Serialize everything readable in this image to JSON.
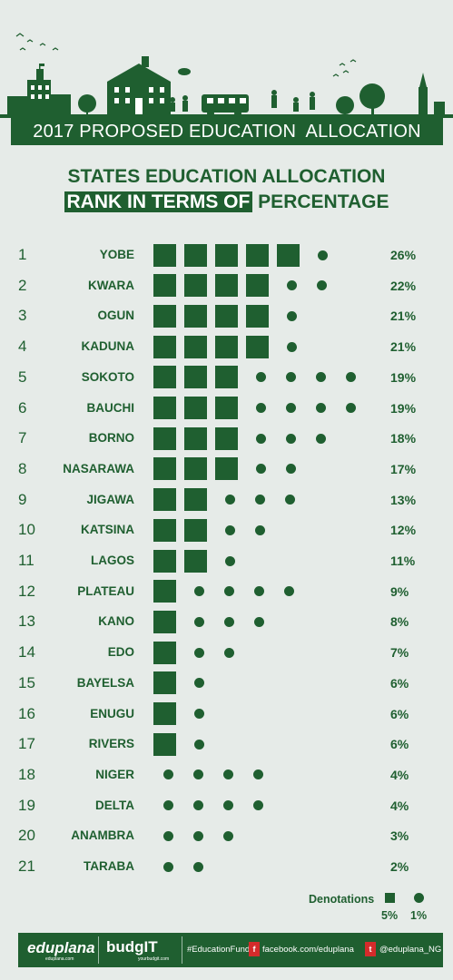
{
  "title": "2017 PROPOSED EDUCATION  ALLOCATION",
  "heading_line1": "STATES EDUCATION ALLOCATION",
  "heading_line2_highlight": "RANK IN TERMS OF",
  "heading_line2_rest": " PERCENTAGE",
  "colors": {
    "primary": "#1f5f30",
    "background": "#e6ebe8",
    "social": "#d42b2b"
  },
  "rows": [
    {
      "rank": "1",
      "state": "YOBE",
      "squares": 5,
      "dots": 1,
      "pct": "26%"
    },
    {
      "rank": "2",
      "state": "KWARA",
      "squares": 4,
      "dots": 2,
      "pct": "22%"
    },
    {
      "rank": "3",
      "state": "OGUN",
      "squares": 4,
      "dots": 1,
      "pct": "21%"
    },
    {
      "rank": "4",
      "state": "KADUNA",
      "squares": 4,
      "dots": 1,
      "pct": "21%"
    },
    {
      "rank": "5",
      "state": "SOKOTO",
      "squares": 3,
      "dots": 4,
      "pct": "19%"
    },
    {
      "rank": "6",
      "state": "BAUCHI",
      "squares": 3,
      "dots": 4,
      "pct": "19%"
    },
    {
      "rank": "7",
      "state": "BORNO",
      "squares": 3,
      "dots": 3,
      "pct": "18%"
    },
    {
      "rank": "8",
      "state": "NASARAWA",
      "squares": 3,
      "dots": 2,
      "pct": "17%"
    },
    {
      "rank": "9",
      "state": "JIGAWA",
      "squares": 2,
      "dots": 3,
      "pct": "13%"
    },
    {
      "rank": "10",
      "state": "KATSINA",
      "squares": 2,
      "dots": 2,
      "pct": "12%"
    },
    {
      "rank": "11",
      "state": "LAGOS",
      "squares": 2,
      "dots": 1,
      "pct": "11%"
    },
    {
      "rank": "12",
      "state": "PLATEAU",
      "squares": 1,
      "dots": 4,
      "pct": "9%"
    },
    {
      "rank": "13",
      "state": "KANO",
      "squares": 1,
      "dots": 3,
      "pct": "8%"
    },
    {
      "rank": "14",
      "state": "EDO",
      "squares": 1,
      "dots": 2,
      "pct": "7%"
    },
    {
      "rank": "15",
      "state": "BAYELSA",
      "squares": 1,
      "dots": 1,
      "pct": "6%"
    },
    {
      "rank": "16",
      "state": "ENUGU",
      "squares": 1,
      "dots": 1,
      "pct": "6%"
    },
    {
      "rank": "17",
      "state": "RIVERS",
      "squares": 1,
      "dots": 1,
      "pct": "6%"
    },
    {
      "rank": "18",
      "state": "NIGER",
      "squares": 0,
      "dots": 4,
      "pct": "4%"
    },
    {
      "rank": "19",
      "state": "DELTA",
      "squares": 0,
      "dots": 4,
      "pct": "4%"
    },
    {
      "rank": "20",
      "state": "ANAMBRA",
      "squares": 0,
      "dots": 3,
      "pct": "3%"
    },
    {
      "rank": "21",
      "state": "TARABA",
      "squares": 0,
      "dots": 2,
      "pct": "2%"
    }
  ],
  "legend": {
    "label": "Denotations",
    "square_value": "5%",
    "dot_value": "1%"
  },
  "footer": {
    "brand1": "eduplana",
    "brand1_sub": "eduplana.com",
    "brand2": "budgIT",
    "brand2_sub": "yourbudgit.com",
    "hashtag": "#EducationFund",
    "facebook": "facebook.com/eduplana",
    "twitter": "@eduplana_NG",
    "facebook_icon": "facebook-icon",
    "twitter_icon": "twitter-icon"
  }
}
